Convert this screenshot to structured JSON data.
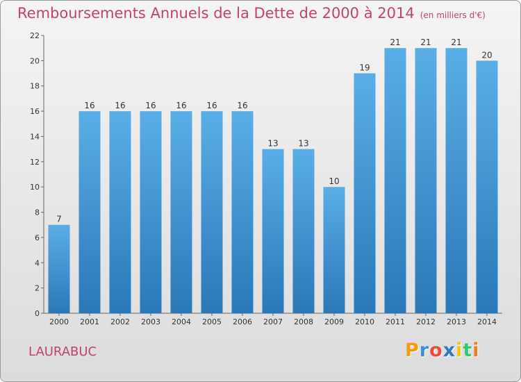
{
  "header": {
    "title": "Remboursements Annuels de la Dette de 2000 à 2014",
    "unit": "(en milliers d'€)"
  },
  "location": "LAURABUC",
  "logo": {
    "text": "Proxiti",
    "letters": [
      {
        "ch": "P",
        "color": "#f39c12"
      },
      {
        "ch": "r",
        "color": "#3b8fd6"
      },
      {
        "ch": "o",
        "color": "#e74c3c"
      },
      {
        "ch": "x",
        "color": "#2c7bbf"
      },
      {
        "ch": "i",
        "color": "#f1c40f"
      },
      {
        "ch": "t",
        "color": "#2ecc71"
      },
      {
        "ch": "i",
        "color": "#e67e22"
      }
    ]
  },
  "colors": {
    "bar_top": "#5aaee6",
    "bar_bottom": "#2a78b8",
    "title": "#c0436e"
  },
  "chart_data": {
    "type": "bar",
    "categories": [
      "2000",
      "2001",
      "2002",
      "2003",
      "2004",
      "2005",
      "2006",
      "2007",
      "2008",
      "2009",
      "2010",
      "2011",
      "2012",
      "2013",
      "2014"
    ],
    "values": [
      7,
      16,
      16,
      16,
      16,
      16,
      16,
      13,
      13,
      10,
      19,
      21,
      21,
      21,
      20
    ],
    "ylim": [
      0,
      22
    ],
    "yticks": [
      0,
      2,
      4,
      6,
      8,
      10,
      12,
      14,
      16,
      18,
      20,
      22
    ],
    "grid": false,
    "data_labels": true
  }
}
